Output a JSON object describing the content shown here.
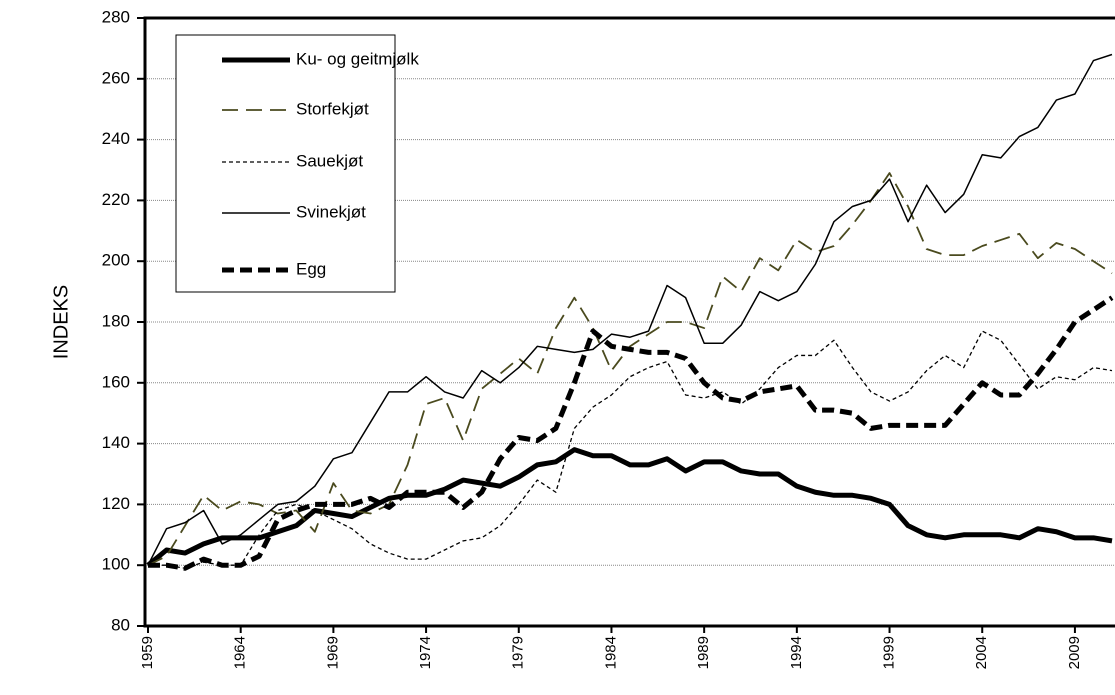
{
  "chart_data": {
    "type": "line",
    "ylabel": "INDEKS",
    "x": [
      1959,
      1960,
      1961,
      1962,
      1963,
      1964,
      1965,
      1966,
      1967,
      1968,
      1969,
      1970,
      1971,
      1972,
      1973,
      1974,
      1975,
      1976,
      1977,
      1978,
      1979,
      1980,
      1981,
      1982,
      1983,
      1984,
      1985,
      1986,
      1987,
      1988,
      1989,
      1990,
      1991,
      1992,
      1993,
      1994,
      1995,
      1996,
      1997,
      1998,
      1999,
      2000,
      2001,
      2002,
      2003,
      2004,
      2005,
      2006,
      2007,
      2008,
      2009,
      2010,
      2011
    ],
    "xlim": [
      1959,
      2011
    ],
    "xticks": [
      1959,
      1964,
      1969,
      1974,
      1979,
      1984,
      1989,
      1994,
      1999,
      2004,
      2009
    ],
    "ylim": [
      80,
      280
    ],
    "yticks": [
      80,
      100,
      120,
      140,
      160,
      180,
      200,
      220,
      240,
      260,
      280
    ],
    "grid": true,
    "legend": "upper left",
    "series": [
      {
        "name": "Ku- og geitmjølk",
        "color": "#000000",
        "width": 5,
        "dash": "none",
        "values": [
          100,
          105,
          104,
          107,
          109,
          109,
          109,
          111,
          113,
          118,
          117,
          116,
          119,
          122,
          123,
          123,
          125,
          128,
          127,
          126,
          129,
          133,
          134,
          138,
          136,
          136,
          133,
          133,
          135,
          131,
          134,
          134,
          131,
          130,
          130,
          126,
          124,
          123,
          123,
          122,
          120,
          113,
          110,
          109,
          110,
          110,
          110,
          109,
          112,
          111,
          109,
          109,
          108
        ]
      },
      {
        "name": "Storfekjøt",
        "color": "#4a4a1e",
        "width": 1.8,
        "dash": "16 8",
        "values": [
          100,
          103,
          113,
          123,
          118,
          121,
          120,
          117,
          118,
          111,
          127,
          118,
          117,
          120,
          133,
          153,
          155,
          141,
          158,
          163,
          168,
          163,
          178,
          188,
          178,
          164,
          172,
          176,
          180,
          180,
          178,
          195,
          190,
          201,
          197,
          207,
          203,
          205,
          212,
          220,
          229,
          218,
          204,
          202,
          202,
          205,
          207,
          209,
          201,
          206,
          204,
          200,
          196
        ]
      },
      {
        "name": "Sauekjøt",
        "color": "#000000",
        "width": 1.3,
        "dash": "4 3",
        "values": [
          100,
          100,
          99,
          101,
          100,
          100,
          110,
          118,
          120,
          118,
          115,
          112,
          107,
          104,
          102,
          102,
          105,
          108,
          109,
          113,
          120,
          128,
          124,
          145,
          152,
          156,
          162,
          165,
          167,
          156,
          155,
          157,
          153,
          158,
          165,
          169,
          169,
          174,
          165,
          157,
          154,
          157,
          164,
          169,
          165,
          177,
          174,
          166,
          158,
          162,
          161,
          165,
          164
        ]
      },
      {
        "name": "Svinekjøt",
        "color": "#000000",
        "width": 1.5,
        "dash": "none",
        "values": [
          100,
          112,
          114,
          118,
          107,
          110,
          115,
          120,
          121,
          126,
          135,
          137,
          147,
          157,
          157,
          162,
          157,
          155,
          164,
          160,
          165,
          172,
          171,
          170,
          171,
          176,
          175,
          177,
          192,
          188,
          173,
          173,
          179,
          190,
          187,
          190,
          199,
          213,
          218,
          220,
          227,
          213,
          225,
          216,
          222,
          235,
          234,
          241,
          244,
          253,
          255,
          266,
          268
        ]
      },
      {
        "name": "Egg",
        "color": "#000000",
        "width": 5,
        "dash": "12 6",
        "values": [
          100,
          100,
          99,
          102,
          100,
          100,
          103,
          115,
          118,
          120,
          120,
          120,
          122,
          119,
          124,
          124,
          124,
          119,
          124,
          135,
          142,
          141,
          145,
          160,
          177,
          172,
          171,
          170,
          170,
          168,
          160,
          155,
          154,
          157,
          158,
          159,
          151,
          151,
          150,
          145,
          146,
          146,
          146,
          146,
          153,
          160,
          156,
          156,
          163,
          171,
          180,
          184,
          188
        ]
      }
    ]
  }
}
